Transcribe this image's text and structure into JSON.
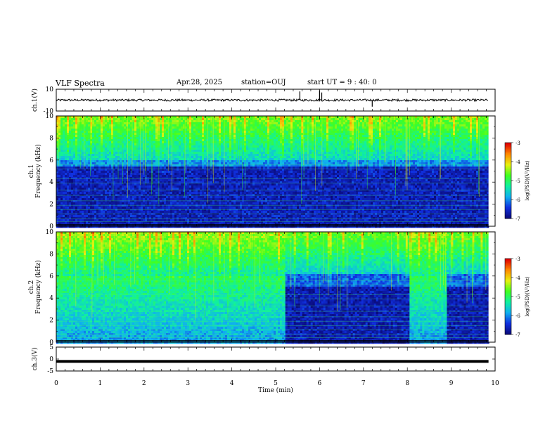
{
  "header": {
    "title": "VLF Spectra",
    "date": "Apr.28, 2025",
    "station": "station=OUJ",
    "start": "start UT =  9 : 40: 0"
  },
  "colors": {
    "colormap": [
      "#0a0a7a",
      "#1030e0",
      "#10b0f0",
      "#10f0a0",
      "#40ff20",
      "#e8f010",
      "#ff8a00",
      "#e00000",
      "#ffffff"
    ]
  },
  "chart_data": [
    {
      "type": "line",
      "ylabel": "ch.1(V)",
      "xlim": [
        0,
        10
      ],
      "ylim": [
        -10,
        10
      ],
      "yticks": [
        10,
        -10
      ],
      "series": [
        {
          "values_note": "",
          "baseline": 0,
          "noise_amplitude": 1,
          "spikes": [
            [
              5.55,
              8
            ],
            [
              6.0,
              9
            ],
            [
              6.05,
              7
            ],
            [
              7.2,
              -6
            ]
          ]
        }
      ]
    },
    {
      "type": "heatmap",
      "ylabel": "ch.1\nFrequency (kHz)",
      "xlim": [
        0,
        9.85
      ],
      "ylim": [
        0,
        10
      ],
      "yticks": [
        0,
        2,
        4,
        6,
        8,
        10
      ],
      "colorbar": {
        "label": "log(PSD)(V²/Hz)",
        "range": [
          -7,
          -3
        ],
        "ticks": [
          "-3",
          "-4",
          "-5",
          "-6",
          "-7"
        ]
      },
      "segments": [
        {
          "x": [
            0,
            9.85
          ],
          "level": "uniform"
        }
      ]
    },
    {
      "type": "heatmap",
      "ylabel": "ch.2\nFrequency (kHz)",
      "xlim": [
        0,
        9.85
      ],
      "ylim": [
        0,
        10
      ],
      "yticks": [
        0,
        2,
        4,
        6,
        8,
        10
      ],
      "colorbar": {
        "label": "log(PSD)(V²/Hz)",
        "range": [
          -7,
          -3
        ],
        "ticks": [
          "-3",
          "-4",
          "-5",
          "-6",
          "-7"
        ]
      },
      "segments": [
        {
          "x": [
            0,
            5.22
          ],
          "level": "high"
        },
        {
          "x": [
            5.22,
            8.05
          ],
          "level": "low"
        },
        {
          "x": [
            8.05,
            8.9
          ],
          "level": "high"
        },
        {
          "x": [
            8.9,
            9.85
          ],
          "level": "low"
        }
      ]
    },
    {
      "type": "line",
      "ylabel": "ch.3(V)",
      "xlabel": "Time (min)",
      "xlim": [
        0,
        10
      ],
      "ylim": [
        -5,
        5
      ],
      "yticks": [
        5,
        0,
        -5
      ],
      "xticks": [
        0,
        1,
        2,
        3,
        4,
        5,
        6,
        7,
        8,
        9,
        10
      ],
      "series": [
        {
          "baseline": -1,
          "x_end": 9.85
        }
      ]
    }
  ]
}
